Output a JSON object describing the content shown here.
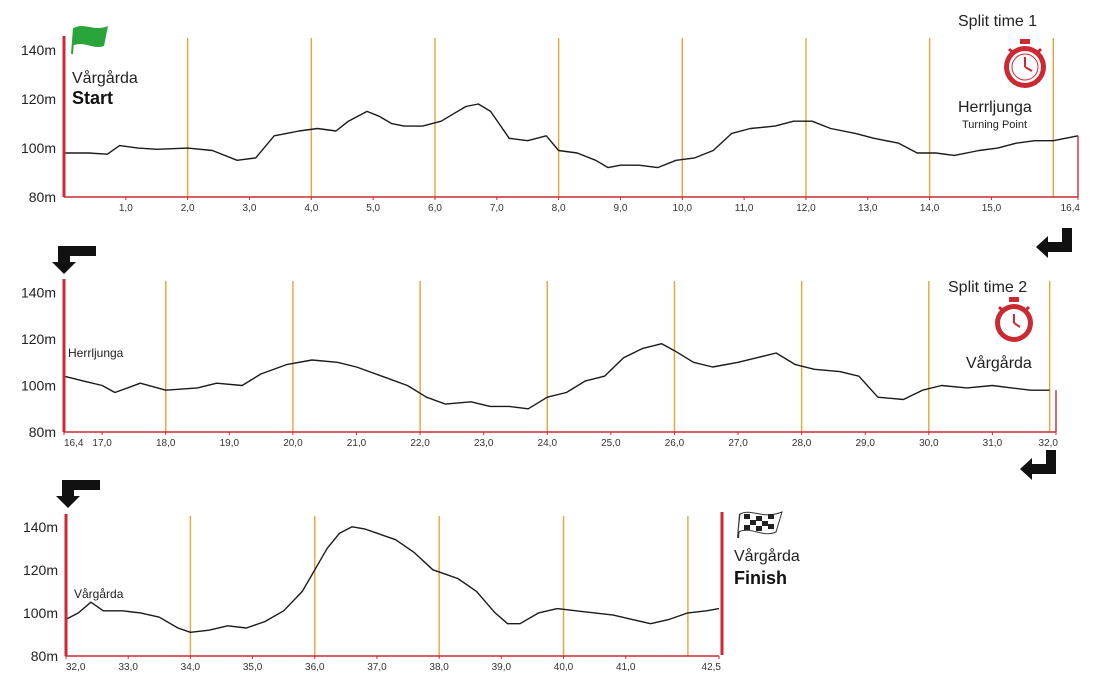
{
  "chart_data": [
    {
      "type": "line",
      "title": "",
      "xlabel": "",
      "ylabel": "",
      "xlim": [
        0,
        16.4
      ],
      "ylim": [
        80,
        145
      ],
      "y_ticks": [
        "140m",
        "120m",
        "100m",
        "80m"
      ],
      "y_tick_values": [
        140,
        120,
        100,
        80
      ],
      "x_ticks": [
        "1,0",
        "2,0",
        "3,0",
        "4,0",
        "5,0",
        "6,0",
        "7,0",
        "8,0",
        "9,0",
        "10,0",
        "11,0",
        "12,0",
        "13,0",
        "14,0",
        "15,0",
        "16,4"
      ],
      "x_tick_values": [
        1,
        2,
        3,
        4,
        5,
        6,
        7,
        8,
        9,
        10,
        11,
        12,
        13,
        14,
        15,
        16.4
      ],
      "km_markers": [
        2,
        4,
        6,
        8,
        10,
        12,
        14,
        16
      ],
      "annotations": {
        "start_place": "Vårgårda",
        "start_label": "Start",
        "split_label": "Split time 1",
        "split_place": "Herrljunga",
        "split_sub": "Turning Point"
      },
      "series": [
        {
          "x": [
            0,
            0.4,
            0.7,
            0.9,
            1.2,
            1.5,
            2.0,
            2.4,
            2.8,
            3.1,
            3.4,
            3.6,
            3.8,
            4.1,
            4.4,
            4.6,
            4.9,
            5.1,
            5.3,
            5.5,
            5.8,
            6.1,
            6.3,
            6.5,
            6.7,
            6.9,
            7.2,
            7.5,
            7.8,
            8.0,
            8.3,
            8.6,
            8.8,
            9.0,
            9.3,
            9.6,
            9.9,
            10.2,
            10.5,
            10.8,
            11.1,
            11.5,
            11.8,
            12.1,
            12.4,
            12.8,
            13.1,
            13.5,
            13.8,
            14.1,
            14.4,
            14.8,
            15.1,
            15.4,
            15.7,
            16.0,
            16.4
          ],
          "y": [
            98,
            98,
            97.5,
            101,
            100,
            99.5,
            100,
            99,
            95,
            96,
            105,
            106,
            107,
            108,
            107,
            111,
            115,
            113,
            110,
            109,
            109,
            111,
            114,
            117,
            118,
            115,
            104,
            103,
            105,
            99,
            98,
            95,
            92,
            93,
            93,
            92,
            95,
            96,
            99,
            106,
            108,
            109,
            111,
            111,
            108,
            106,
            104,
            102,
            98,
            98,
            97,
            99,
            100,
            102,
            103,
            103,
            105
          ]
        }
      ]
    },
    {
      "type": "line",
      "title": "",
      "xlabel": "",
      "ylabel": "",
      "xlim": [
        16.4,
        32.0
      ],
      "ylim": [
        80,
        145
      ],
      "y_ticks": [
        "140m",
        "120m",
        "100m",
        "80m"
      ],
      "y_tick_values": [
        140,
        120,
        100,
        80
      ],
      "x_ticks": [
        "16,4",
        "17,0",
        "18,0",
        "19,0",
        "20,0",
        "21,0",
        "22,0",
        "23,0",
        "24,0",
        "25,0",
        "26,0",
        "27,0",
        "28,0",
        "29,0",
        "30,0",
        "31,0",
        "32,0"
      ],
      "x_tick_values": [
        16.4,
        17,
        18,
        19,
        20,
        21,
        22,
        23,
        24,
        25,
        26,
        27,
        28,
        29,
        30,
        31,
        32
      ],
      "km_markers": [
        18,
        20,
        22,
        24,
        26,
        28,
        30,
        31.9
      ],
      "annotations": {
        "start_place": "Herrljunga",
        "split_label": "Split time 2",
        "split_place": "Vårgårda"
      },
      "series": [
        {
          "x": [
            16.4,
            16.7,
            17.0,
            17.2,
            17.6,
            18.0,
            18.5,
            18.8,
            19.2,
            19.5,
            19.9,
            20.3,
            20.7,
            21.0,
            21.4,
            21.8,
            22.1,
            22.4,
            22.8,
            23.1,
            23.4,
            23.7,
            24.0,
            24.3,
            24.6,
            24.9,
            25.2,
            25.5,
            25.8,
            26.0,
            26.3,
            26.6,
            27.0,
            27.3,
            27.6,
            27.9,
            28.2,
            28.6,
            28.9,
            29.2,
            29.6,
            29.9,
            30.2,
            30.6,
            31.0,
            31.3,
            31.6,
            31.9
          ],
          "y": [
            104,
            102,
            100,
            97,
            101,
            98,
            99,
            101,
            100,
            105,
            109,
            111,
            110,
            108,
            104,
            100,
            95,
            92,
            93,
            91,
            91,
            90,
            95,
            97,
            102,
            104,
            112,
            116,
            118,
            115,
            110,
            108,
            110,
            112,
            114,
            109,
            107,
            106,
            104,
            95,
            94,
            98,
            100,
            99,
            100,
            99,
            98,
            98
          ]
        }
      ]
    },
    {
      "type": "line",
      "title": "",
      "xlabel": "",
      "ylabel": "",
      "xlim": [
        32.0,
        42.5
      ],
      "ylim": [
        80,
        145
      ],
      "y_ticks": [
        "140m",
        "120m",
        "100m",
        "80m"
      ],
      "y_tick_values": [
        140,
        120,
        100,
        80
      ],
      "x_ticks": [
        "32,0",
        "33,0",
        "34,0",
        "35,0",
        "36,0",
        "37,0",
        "38,0",
        "39,0",
        "40,0",
        "41,0",
        "42,5"
      ],
      "x_tick_values": [
        32,
        33,
        34,
        35,
        36,
        37,
        38,
        39,
        40,
        41,
        42.5
      ],
      "km_markers": [
        34,
        36,
        38,
        40,
        42
      ],
      "annotations": {
        "start_place": "Vårgårda",
        "finish_place": "Vårgårda",
        "finish_label": "Finish"
      },
      "series": [
        {
          "x": [
            32.0,
            32.2,
            32.4,
            32.6,
            32.9,
            33.2,
            33.5,
            33.8,
            34.0,
            34.3,
            34.6,
            34.9,
            35.2,
            35.5,
            35.8,
            36.0,
            36.2,
            36.4,
            36.6,
            36.8,
            37.0,
            37.3,
            37.6,
            37.9,
            38.1,
            38.3,
            38.6,
            38.9,
            39.1,
            39.3,
            39.6,
            39.9,
            40.2,
            40.5,
            40.8,
            41.1,
            41.4,
            41.7,
            42.0,
            42.3,
            42.5
          ],
          "y": [
            97,
            100,
            105,
            101,
            101,
            100,
            98,
            93,
            91,
            92,
            94,
            93,
            96,
            101,
            110,
            120,
            130,
            137,
            140,
            139,
            137,
            134,
            128,
            120,
            118,
            116,
            110,
            100,
            95,
            95,
            100,
            102,
            101,
            100,
            99,
            97,
            95,
            97,
            100,
            101,
            102
          ]
        }
      ]
    }
  ],
  "colors": {
    "profile": "#1a1a1a",
    "marker": "#e8a33a",
    "axis": "#cc2a33",
    "clock": "#cc2a33",
    "start_flag": "#2aa53b",
    "arrow": "#111111"
  },
  "icons": {
    "start": "start-flag-icon",
    "split": "stopwatch-icon",
    "finish": "checkered-flag-icon",
    "turn": "turn-arrow-icon"
  }
}
